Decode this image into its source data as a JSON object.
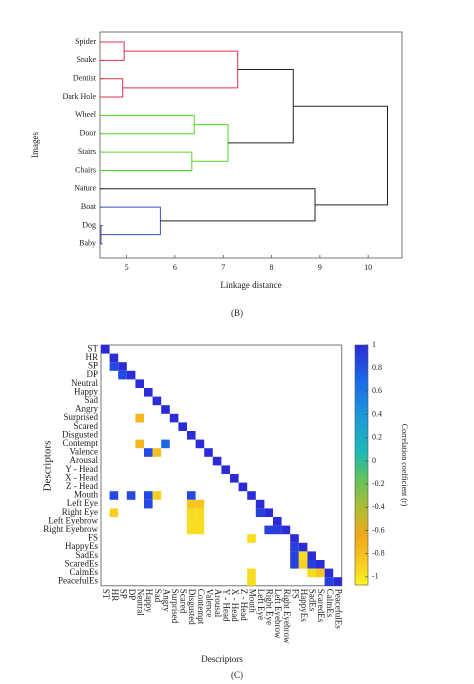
{
  "chart_data": [
    {
      "type": "dendrogram",
      "panel_label": "(B)",
      "xlabel": "Linkage distance",
      "ylabel": "Images",
      "leaves": [
        "Spider",
        "Snake",
        "Dentist",
        "Dark Hole",
        "Wheel",
        "Door",
        "Stairs",
        "Chairs",
        "Nature",
        "Boat",
        "Dog",
        "Baby"
      ],
      "merges": [
        {
          "children": [
            10,
            11
          ],
          "height": 4.47,
          "color": "#3a4fc0"
        },
        {
          "children": [
            2,
            3
          ],
          "height": 4.92,
          "color": "#e0314a"
        },
        {
          "children": [
            0,
            1
          ],
          "height": 4.95,
          "color": "#e0314a"
        },
        {
          "children": [
            9,
            12
          ],
          "height": 5.7,
          "color": "#3a4fc0"
        },
        {
          "children": [
            6,
            7
          ],
          "height": 6.35,
          "color": "#55d62a"
        },
        {
          "children": [
            4,
            5
          ],
          "height": 6.4,
          "color": "#55d62a"
        },
        {
          "children": [
            16,
            17
          ],
          "height": 7.1,
          "color": "#55d62a"
        },
        {
          "children": [
            14,
            13
          ],
          "height": 7.3,
          "color": "#e0314a"
        },
        {
          "children": [
            18,
            19
          ],
          "height": 8.45,
          "color": "#222222"
        },
        {
          "children": [
            8,
            15
          ],
          "height": 8.9,
          "color": "#222222"
        },
        {
          "children": [
            20,
            21
          ],
          "height": 10.4,
          "color": "#222222"
        }
      ],
      "xlim": [
        4.45,
        10.7
      ],
      "xticks": [
        5,
        6,
        7,
        8,
        9,
        10
      ]
    },
    {
      "type": "heatmap",
      "panel_label": "(C)",
      "xlabel": "Descriptors",
      "ylabel": "Descriptors",
      "colorbar_label": "Correlation coefficient (r)",
      "colormap": "parula",
      "categories": [
        "ST",
        "HR",
        "SP",
        "DP",
        "Neutral",
        "Happy",
        "Sad",
        "Angry",
        "Surprised",
        "Scared",
        "Disgusted",
        "Contempt",
        "Valence",
        "Arousal",
        "Y - Head",
        "X - Head",
        "Z - Head",
        "Mouth",
        "Left Eye",
        "Right Eye",
        "Left Eyebrow",
        "Right Eyebrow",
        "FS",
        "HappyEs",
        "SadEs",
        "ScaredEs",
        "CalmEs",
        "PeacefulEs"
      ],
      "diagonal": 1,
      "cells": [
        {
          "row": "SP",
          "col": "HR",
          "value": 0.85
        },
        {
          "row": "DP",
          "col": "SP",
          "value": 0.85
        },
        {
          "row": "Surprised",
          "col": "Neutral",
          "value": -0.75
        },
        {
          "row": "Contempt",
          "col": "Neutral",
          "value": -0.75
        },
        {
          "row": "Contempt",
          "col": "Angry",
          "value": 0.7
        },
        {
          "row": "Valence",
          "col": "Happy",
          "value": 0.85
        },
        {
          "row": "Valence",
          "col": "Sad",
          "value": -0.8
        },
        {
          "row": "Mouth",
          "col": "HR",
          "value": 0.85
        },
        {
          "row": "Mouth",
          "col": "DP",
          "value": 0.85
        },
        {
          "row": "Mouth",
          "col": "Happy",
          "value": 0.85
        },
        {
          "row": "Mouth",
          "col": "Sad",
          "value": -0.9
        },
        {
          "row": "Mouth",
          "col": "Disgusted",
          "value": 0.85
        },
        {
          "row": "Left Eye",
          "col": "Happy",
          "value": 0.85
        },
        {
          "row": "Left Eye",
          "col": "Disgusted",
          "value": -0.85
        },
        {
          "row": "Left Eye",
          "col": "Contempt",
          "value": -0.85
        },
        {
          "row": "Right Eye",
          "col": "HR",
          "value": -0.9
        },
        {
          "row": "Right Eye",
          "col": "Disgusted",
          "value": -0.95
        },
        {
          "row": "Right Eye",
          "col": "Contempt",
          "value": -0.95
        },
        {
          "row": "Right Eye",
          "col": "Left Eye",
          "value": 0.9
        },
        {
          "row": "Left Eyebrow",
          "col": "Disgusted",
          "value": -0.95
        },
        {
          "row": "Left Eyebrow",
          "col": "Contempt",
          "value": -0.95
        },
        {
          "row": "Right Eyebrow",
          "col": "Disgusted",
          "value": -0.95
        },
        {
          "row": "Right Eyebrow",
          "col": "Contempt",
          "value": -0.95
        },
        {
          "row": "Right Eyebrow",
          "col": "Right Eye",
          "value": 0.9
        },
        {
          "row": "Right Eyebrow",
          "col": "Left Eyebrow",
          "value": 0.9
        },
        {
          "row": "FS",
          "col": "Mouth",
          "value": -0.95
        },
        {
          "row": "HappyEs",
          "col": "FS",
          "value": 0.9
        },
        {
          "row": "SadEs",
          "col": "FS",
          "value": 0.9
        },
        {
          "row": "SadEs",
          "col": "HappyEs",
          "value": -0.95
        },
        {
          "row": "ScaredEs",
          "col": "FS",
          "value": 0.9
        },
        {
          "row": "ScaredEs",
          "col": "HappyEs",
          "value": -0.9
        },
        {
          "row": "ScaredEs",
          "col": "SadEs",
          "value": 0.9
        },
        {
          "row": "CalmEs",
          "col": "Mouth",
          "value": -0.95
        },
        {
          "row": "CalmEs",
          "col": "SadEs",
          "value": -0.95
        },
        {
          "row": "CalmEs",
          "col": "ScaredEs",
          "value": -0.85
        },
        {
          "row": "PeacefulEs",
          "col": "Mouth",
          "value": -0.95
        },
        {
          "row": "PeacefulEs",
          "col": "CalmEs",
          "value": 0.9
        }
      ],
      "clim": [
        -1.07,
        1
      ],
      "cticks": [
        1,
        0.8,
        0.6,
        0.4,
        0.2,
        0,
        -0.2,
        -0.4,
        -0.6,
        -0.8,
        -1
      ]
    }
  ]
}
